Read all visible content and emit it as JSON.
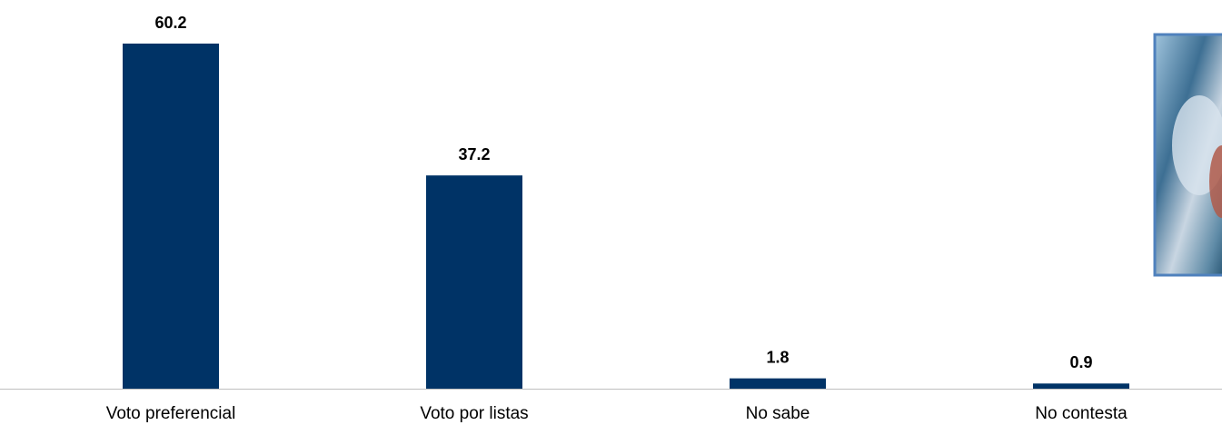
{
  "chart_data": {
    "type": "bar",
    "categories": [
      "Voto preferencial",
      "Voto por listas",
      "No sabe",
      "No contesta"
    ],
    "values": [
      60.2,
      37.2,
      1.8,
      0.9
    ],
    "color": "#003366"
  }
}
